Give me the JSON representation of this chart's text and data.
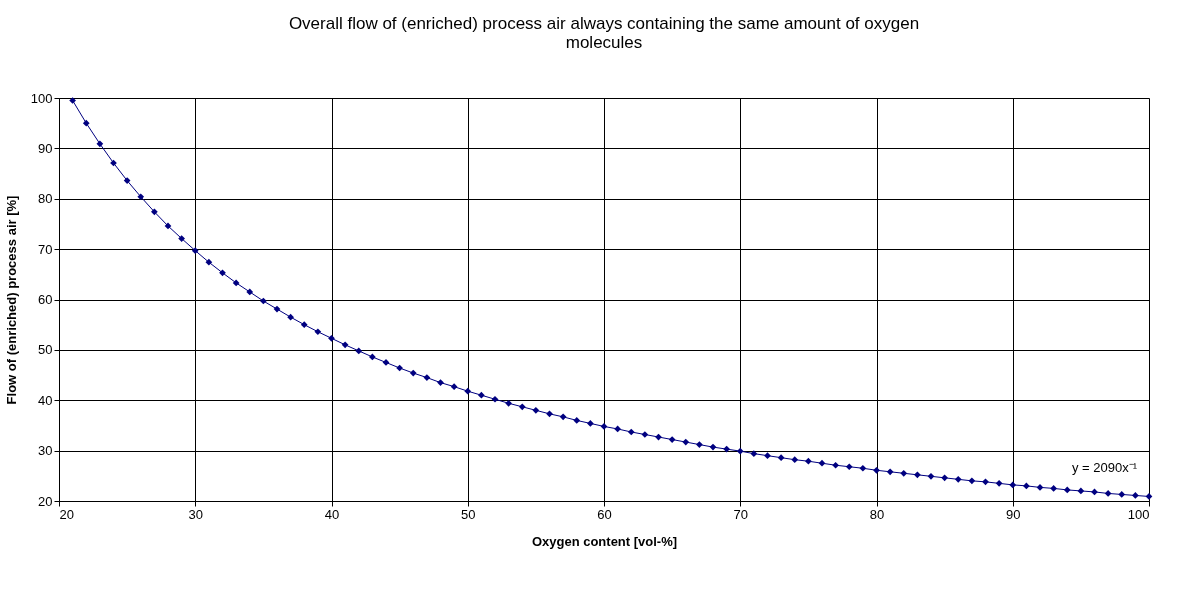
{
  "chart_data": {
    "type": "line",
    "title": "Overall flow of (enriched) process air always containing the same amount of oxygen molecules",
    "xlabel": "Oxygen content [vol-%]",
    "ylabel": "Flow of (enriched) process air [%]",
    "x": [
      21,
      22,
      23,
      24,
      25,
      26,
      27,
      28,
      29,
      30,
      31,
      32,
      33,
      34,
      35,
      36,
      37,
      38,
      39,
      40,
      41,
      42,
      43,
      44,
      45,
      46,
      47,
      48,
      49,
      50,
      51,
      52,
      53,
      54,
      55,
      56,
      57,
      58,
      59,
      60,
      61,
      62,
      63,
      64,
      65,
      66,
      67,
      68,
      69,
      70,
      71,
      72,
      73,
      74,
      75,
      76,
      77,
      78,
      79,
      80,
      81,
      82,
      83,
      84,
      85,
      86,
      87,
      88,
      89,
      90,
      91,
      92,
      93,
      94,
      95,
      96,
      97,
      98,
      99,
      100
    ],
    "series": [
      {
        "color": "#000080",
        "values": [
          99.5,
          95.0,
          90.9,
          87.1,
          83.6,
          80.4,
          77.4,
          74.6,
          72.1,
          69.7,
          67.4,
          65.3,
          63.3,
          61.5,
          59.7,
          58.1,
          56.5,
          55.0,
          53.6,
          52.3,
          51.0,
          49.8,
          48.6,
          47.5,
          46.4,
          45.4,
          44.5,
          43.5,
          42.7,
          41.8,
          41.0,
          40.2,
          39.4,
          38.7,
          38.0,
          37.3,
          36.7,
          36.0,
          35.4,
          34.8,
          34.3,
          33.7,
          33.2,
          32.7,
          32.2,
          31.7,
          31.2,
          30.7,
          30.3,
          29.9,
          29.4,
          29.0,
          28.6,
          28.2,
          27.9,
          27.5,
          27.1,
          26.8,
          26.5,
          26.1,
          25.8,
          25.5,
          25.2,
          24.9,
          24.6,
          24.3,
          24.0,
          23.8,
          23.5,
          23.2,
          23.0,
          22.7,
          22.5,
          22.2,
          22.0,
          21.8,
          21.5,
          21.3,
          21.1,
          20.9
        ]
      }
    ],
    "xlim": [
      20,
      100
    ],
    "xticks": [
      20,
      30,
      40,
      50,
      60,
      70,
      80,
      90,
      100
    ],
    "ylim": [
      20,
      100
    ],
    "yticks": [
      20,
      30,
      40,
      50,
      60,
      70,
      80,
      90,
      100
    ],
    "grid": true,
    "marker": "diamond",
    "line_style": "solid",
    "annotations": [
      "y = 2090x⁻¹"
    ]
  }
}
